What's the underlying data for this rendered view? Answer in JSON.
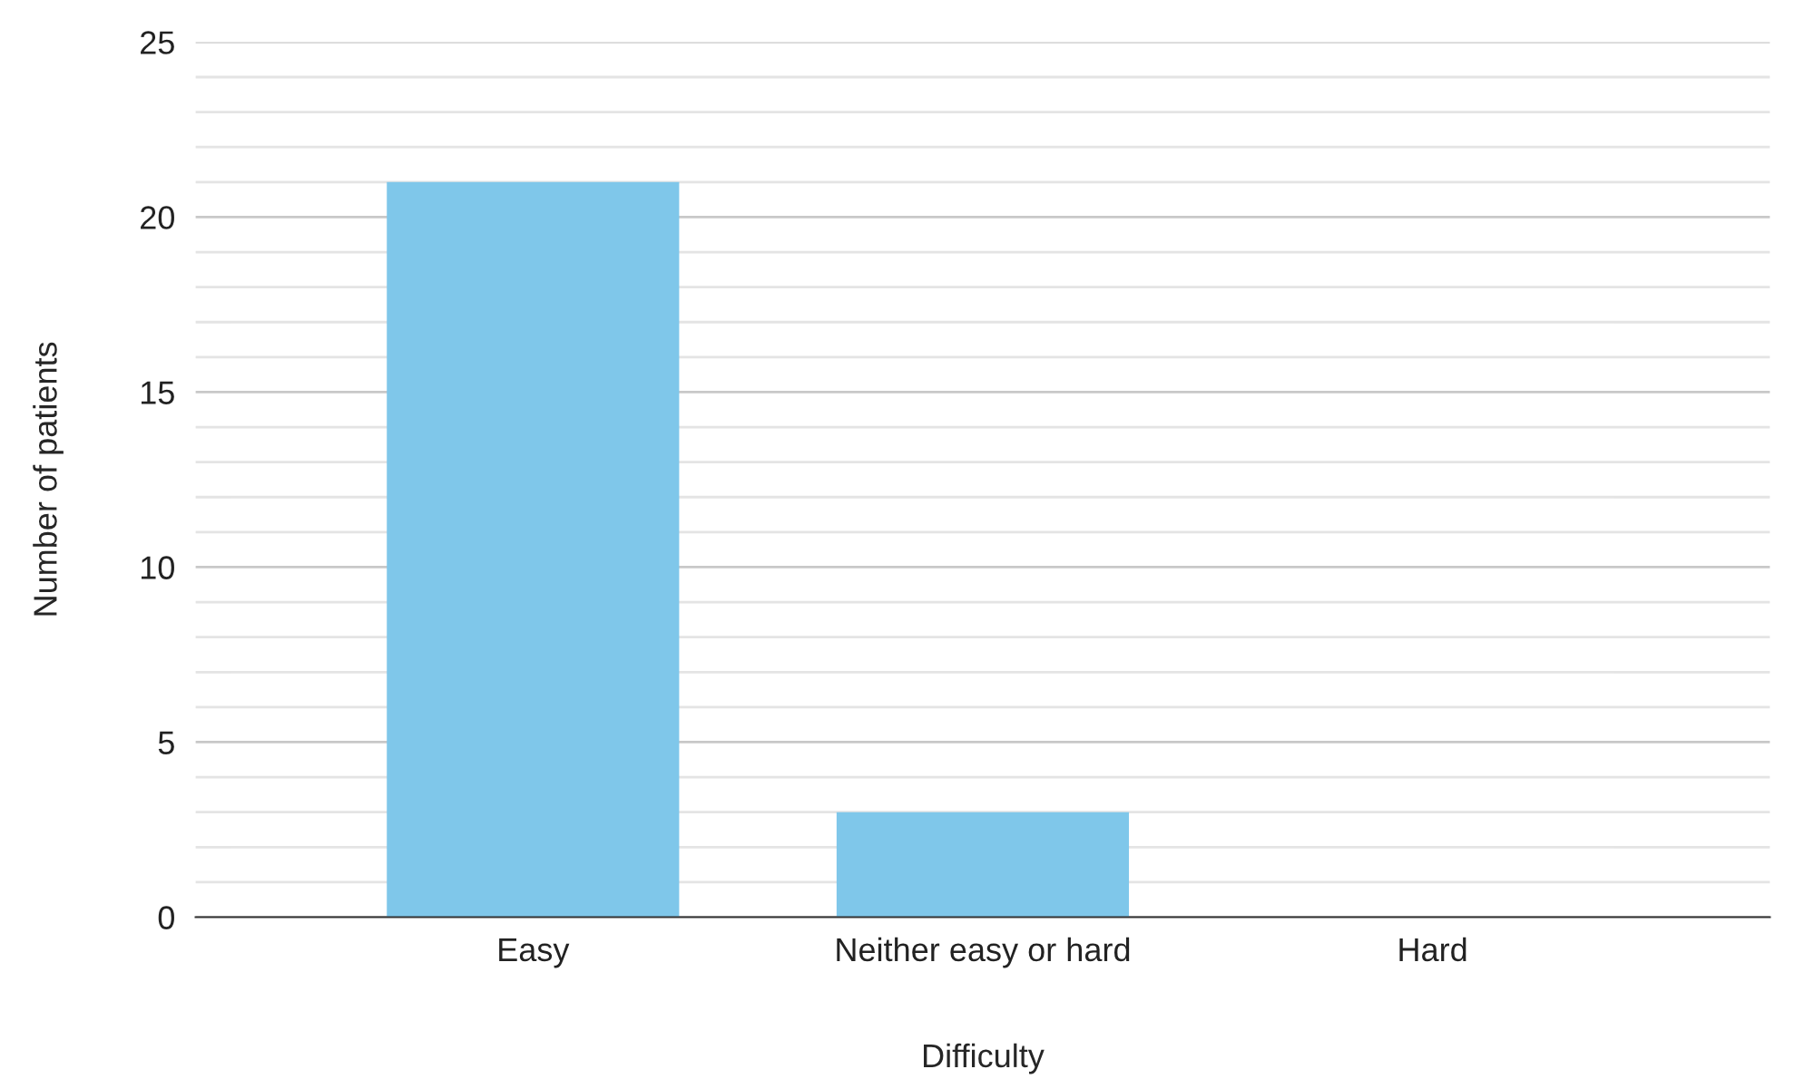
{
  "chart_data": {
    "type": "bar",
    "xlabel": "Difficulty",
    "ylabel": "Number of patients",
    "categories": [
      "Easy",
      "Neither easy or hard",
      "Hard"
    ],
    "values": [
      21,
      3,
      0
    ],
    "color": "#7fc7ea",
    "ylim": [
      0,
      25
    ],
    "yticks": [
      0,
      {
        "value": 1,
        "label": null
      },
      {
        "value": 2,
        "label": null
      },
      {
        "value": 3,
        "label": null
      },
      {
        "value": 4,
        "label": null
      },
      5,
      {
        "value": 6,
        "label": null
      },
      {
        "value": 7,
        "label": null
      },
      {
        "value": 8,
        "label": null
      },
      {
        "value": 9,
        "label": null
      },
      10,
      {
        "value": 11,
        "label": null
      },
      {
        "value": 12,
        "label": null
      },
      {
        "value": 13,
        "label": null
      },
      {
        "value": 14,
        "label": null
      },
      15,
      {
        "value": 16,
        "label": null
      },
      {
        "value": 17,
        "label": null
      },
      {
        "value": 18,
        "label": null
      },
      {
        "value": 19,
        "label": null
      },
      20,
      {
        "value": 21,
        "label": null
      },
      {
        "value": 22,
        "label": null
      },
      {
        "value": 23,
        "label": null
      },
      {
        "value": 24,
        "label": null
      },
      25
    ],
    "grid": "y"
  }
}
